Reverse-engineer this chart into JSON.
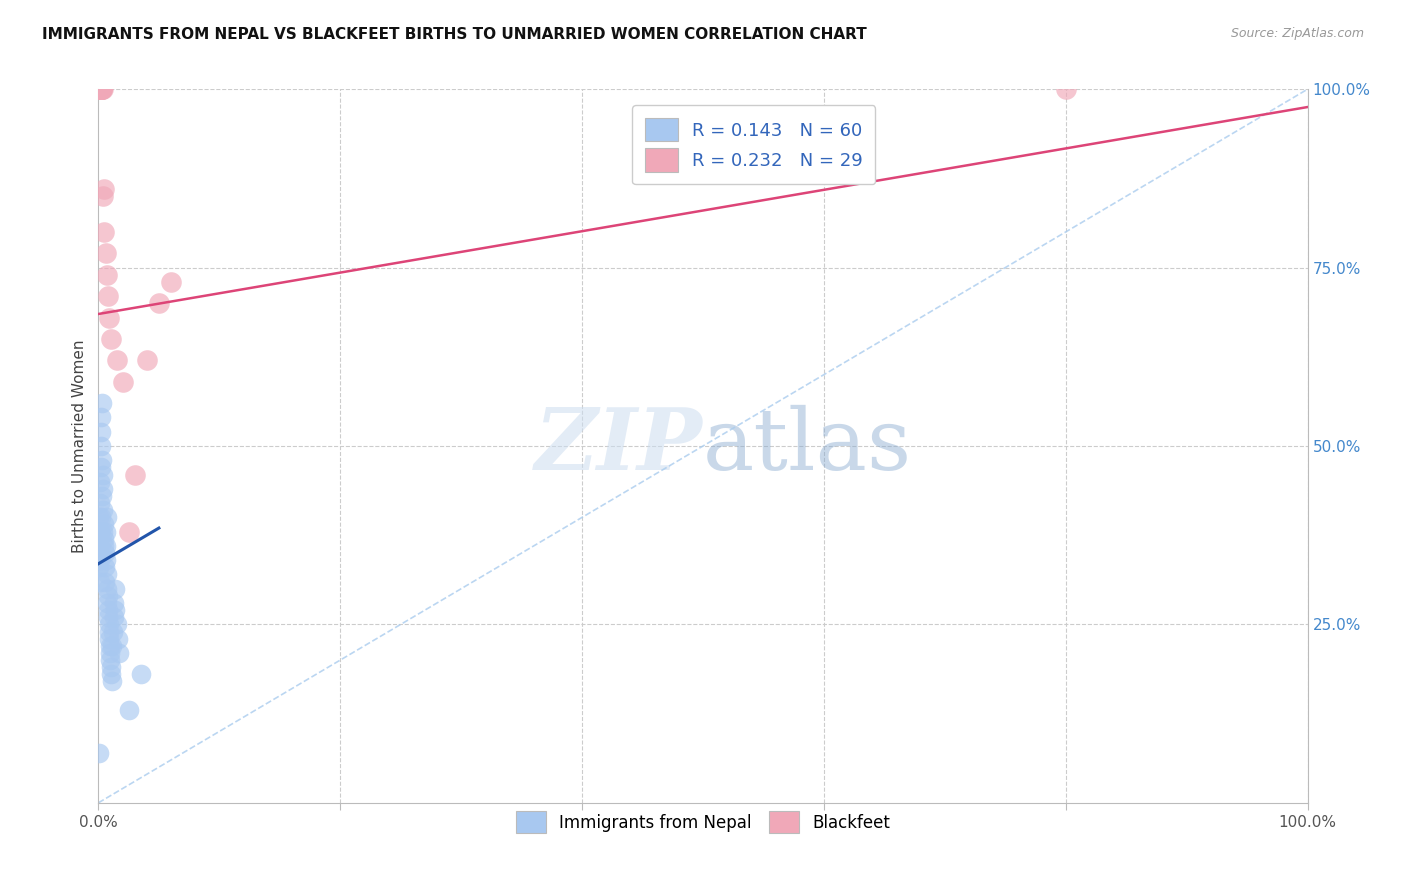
{
  "title": "IMMIGRANTS FROM NEPAL VS BLACKFEET BIRTHS TO UNMARRIED WOMEN CORRELATION CHART",
  "source": "Source: ZipAtlas.com",
  "ylabel": "Births to Unmarried Women",
  "legend_label1": "Immigrants from Nepal",
  "legend_label2": "Blackfeet",
  "r1": 0.143,
  "n1": 60,
  "r2": 0.232,
  "n2": 29,
  "blue_color": "#a8c8f0",
  "pink_color": "#f0a8b8",
  "blue_line_color": "#2255aa",
  "pink_line_color": "#dd4477",
  "blue_scatter_x": [
    0.05,
    0.08,
    0.1,
    0.12,
    0.15,
    0.18,
    0.2,
    0.22,
    0.25,
    0.28,
    0.3,
    0.32,
    0.35,
    0.38,
    0.4,
    0.42,
    0.45,
    0.48,
    0.5,
    0.52,
    0.55,
    0.58,
    0.6,
    0.62,
    0.65,
    0.68,
    0.7,
    0.72,
    0.75,
    0.78,
    0.8,
    0.82,
    0.85,
    0.88,
    0.9,
    0.92,
    0.95,
    0.98,
    1.0,
    1.05,
    1.1,
    1.15,
    1.2,
    1.25,
    1.3,
    1.35,
    1.4,
    1.5,
    1.6,
    1.7,
    0.05,
    0.07,
    0.09,
    0.11,
    0.13,
    0.16,
    0.19,
    2.5,
    3.5,
    0.06
  ],
  "blue_scatter_y": [
    37.0,
    40.0,
    38.0,
    42.0,
    45.0,
    47.0,
    50.0,
    52.0,
    54.0,
    56.0,
    48.0,
    43.0,
    46.0,
    44.0,
    41.0,
    38.0,
    36.0,
    39.0,
    37.0,
    35.0,
    33.0,
    31.0,
    34.0,
    36.0,
    38.0,
    40.0,
    32.0,
    30.0,
    28.0,
    26.0,
    29.0,
    27.0,
    25.0,
    23.0,
    24.0,
    22.0,
    21.0,
    20.0,
    19.0,
    18.0,
    17.0,
    22.0,
    24.0,
    26.0,
    28.0,
    30.0,
    27.0,
    25.0,
    23.0,
    21.0,
    35.0,
    33.0,
    31.0,
    34.0,
    36.0,
    38.0,
    40.0,
    13.0,
    18.0,
    7.0
  ],
  "pink_scatter_x": [
    0.05,
    0.08,
    0.1,
    0.12,
    0.15,
    0.18,
    0.2,
    0.22,
    0.25,
    0.28,
    0.3,
    0.32,
    0.35,
    0.4,
    0.5,
    0.6,
    0.7,
    0.8,
    0.9,
    1.0,
    1.5,
    2.0,
    2.5,
    3.0,
    4.0,
    5.0,
    6.0,
    80.0,
    0.45
  ],
  "pink_scatter_y": [
    100.0,
    100.0,
    100.0,
    100.0,
    100.0,
    100.0,
    100.0,
    100.0,
    100.0,
    100.0,
    100.0,
    100.0,
    100.0,
    85.0,
    80.0,
    77.0,
    74.0,
    71.0,
    68.0,
    65.0,
    62.0,
    59.0,
    38.0,
    46.0,
    62.0,
    70.0,
    73.0,
    100.0,
    86.0
  ],
  "blue_trend_x": [
    0.0,
    5.0
  ],
  "blue_trend_y": [
    33.5,
    38.5
  ],
  "pink_trend_x": [
    0.0,
    100.0
  ],
  "pink_trend_y": [
    68.5,
    97.5
  ],
  "diag_line_x": [
    0.0,
    100.0
  ],
  "diag_line_y": [
    0.0,
    100.0
  ],
  "xlim": [
    0,
    100
  ],
  "ylim": [
    0,
    100
  ]
}
